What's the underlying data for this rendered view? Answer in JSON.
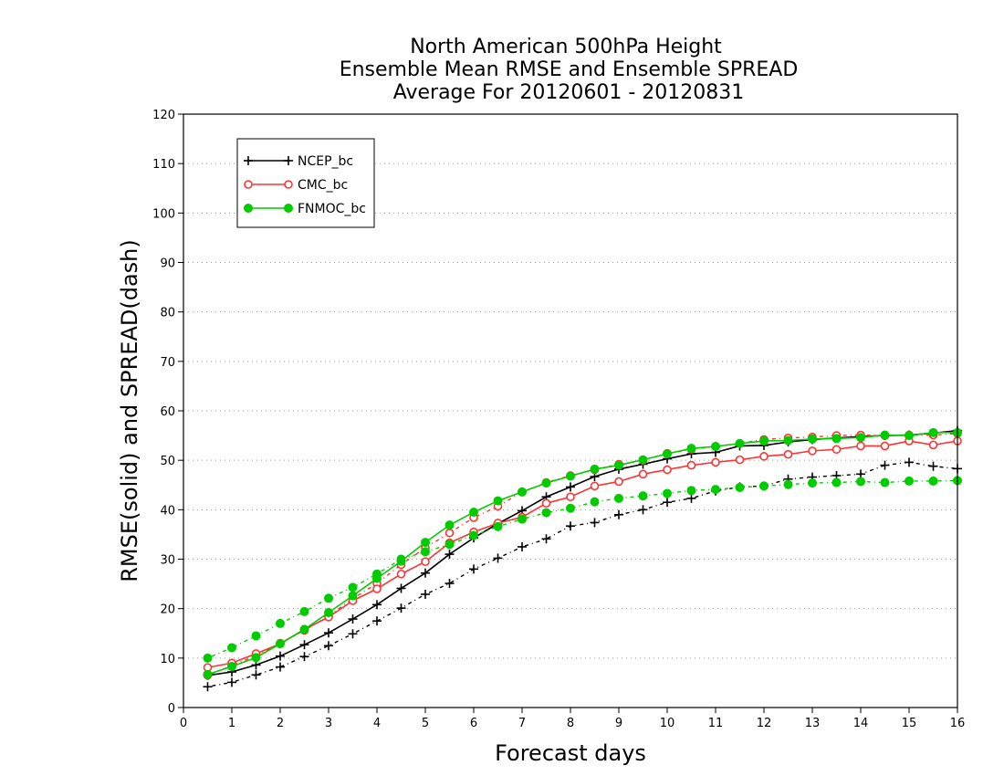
{
  "chart_data": {
    "type": "line",
    "title": [
      "North American 500hPa Height",
      "Ensemble Mean RMSE and Ensemble SPREAD",
      "Average For 20120601 - 20120831"
    ],
    "xlabel": "Forecast days",
    "ylabel": "RMSE(solid) and SPREAD(dash)",
    "xlim": [
      0,
      16
    ],
    "ylim": [
      0,
      120
    ],
    "xticks": [
      0,
      1,
      2,
      3,
      4,
      5,
      6,
      7,
      8,
      9,
      10,
      11,
      12,
      13,
      14,
      15,
      16
    ],
    "yticks": [
      0,
      10,
      20,
      30,
      40,
      50,
      60,
      70,
      80,
      90,
      100,
      110,
      120
    ],
    "grid": true,
    "legend_position": "top-left",
    "x": [
      0.5,
      1,
      1.5,
      2,
      2.5,
      3,
      3.5,
      4,
      4.5,
      5,
      5.5,
      6,
      6.5,
      7,
      7.5,
      8,
      8.5,
      9,
      9.5,
      10,
      10.5,
      11,
      11.5,
      12,
      12.5,
      13,
      13.5,
      14,
      14.5,
      15,
      15.5,
      16
    ],
    "series": [
      {
        "name": "NCEP_bc",
        "color": "#000000",
        "marker": "plus",
        "rmse": [
          6.5,
          7.2,
          8.6,
          10.4,
          12.7,
          15.1,
          17.9,
          20.8,
          24.1,
          27.2,
          31.0,
          34.3,
          37.2,
          39.8,
          42.6,
          44.6,
          46.7,
          48.2,
          49.2,
          50.3,
          51.3,
          51.6,
          52.9,
          53.0,
          53.7,
          54.2,
          54.5,
          54.8,
          55.0,
          55.1,
          55.5,
          56.0
        ],
        "spread": [
          4.2,
          5.1,
          6.6,
          8.2,
          10.3,
          12.5,
          14.9,
          17.5,
          20.1,
          22.9,
          25.1,
          28.0,
          30.2,
          32.5,
          34.1,
          36.7,
          37.4,
          39.0,
          40.0,
          41.5,
          42.3,
          43.8,
          44.6,
          44.8,
          46.2,
          46.6,
          46.9,
          47.2,
          49.0,
          49.6,
          48.8,
          48.3
        ]
      },
      {
        "name": "CMC_bc",
        "color": "#ff3333",
        "marker": "open-circle",
        "rmse": [
          8.1,
          9.0,
          10.9,
          12.9,
          15.8,
          18.3,
          21.6,
          24.0,
          27.0,
          29.5,
          33.3,
          35.5,
          37.3,
          38.5,
          41.3,
          42.6,
          44.8,
          45.7,
          47.2,
          48.1,
          49.0,
          49.6,
          50.1,
          50.8,
          51.2,
          51.9,
          52.2,
          52.9,
          52.9,
          53.9,
          53.1,
          53.9
        ],
        "spread": [
          6.5,
          8.5,
          10.5,
          13.0,
          15.6,
          18.5,
          22.0,
          25.1,
          28.9,
          32.3,
          35.3,
          38.4,
          40.7,
          43.6,
          45.5,
          46.9,
          48.1,
          49.2,
          50.0,
          51.4,
          52.2,
          52.8,
          53.4,
          54.2,
          54.5,
          54.7,
          55.0,
          55.1,
          55.0,
          55.1,
          55.1,
          55.4
        ]
      },
      {
        "name": "FNMOC_bc",
        "color": "#00cc00",
        "marker": "filled-circle",
        "rmse": [
          6.7,
          8.3,
          10.1,
          12.9,
          15.8,
          19.2,
          22.6,
          26.1,
          29.6,
          33.4,
          36.9,
          39.5,
          41.8,
          43.6,
          45.4,
          46.8,
          48.2,
          49.0,
          50.1,
          51.3,
          52.4,
          52.8,
          53.4,
          53.9,
          54.0,
          54.3,
          54.4,
          54.6,
          55.1,
          55.0,
          55.6,
          55.6
        ],
        "spread": [
          10.0,
          12.1,
          14.5,
          17.0,
          19.4,
          22.1,
          24.3,
          27.0,
          30.0,
          31.5,
          33.0,
          34.8,
          36.6,
          38.1,
          39.4,
          40.3,
          41.6,
          42.3,
          42.8,
          43.3,
          43.9,
          44.1,
          44.5,
          44.8,
          45.1,
          45.4,
          45.5,
          45.7,
          45.5,
          45.8,
          45.8,
          45.9
        ]
      }
    ]
  }
}
